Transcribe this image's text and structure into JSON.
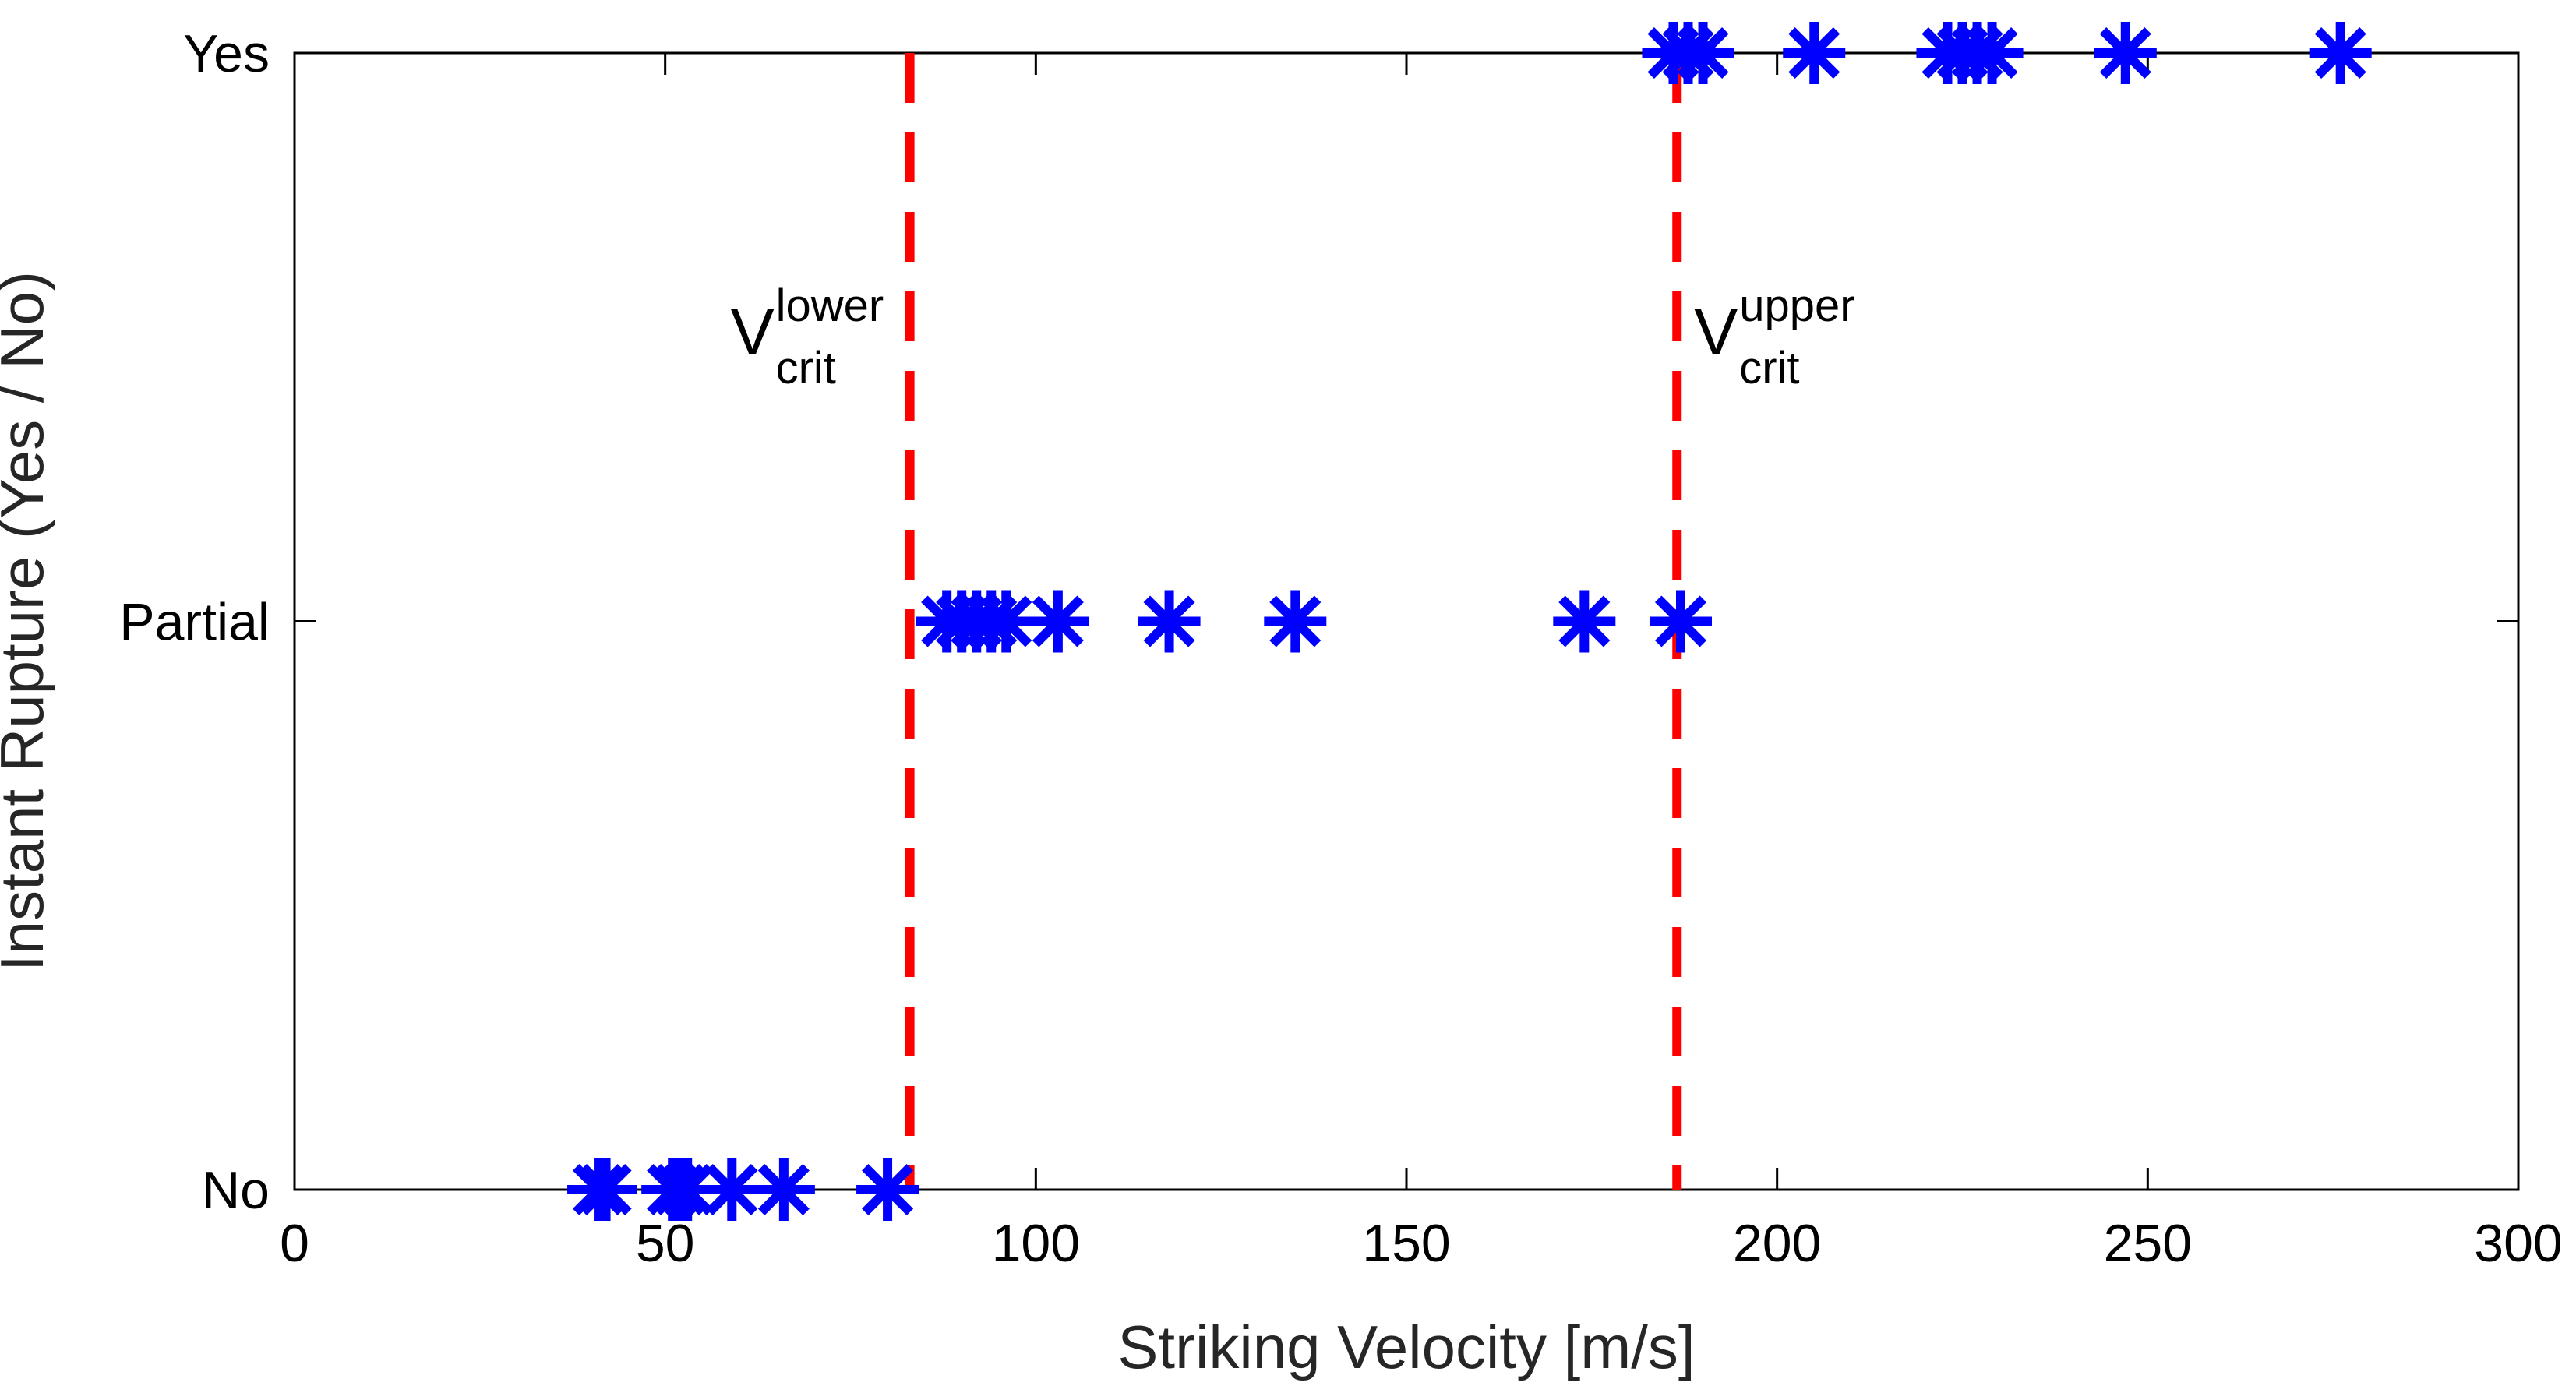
{
  "chart_data": {
    "type": "scatter",
    "title": "",
    "xlabel": "Striking Velocity [m/s]",
    "ylabel": "Instant Rupture (Yes / No)",
    "xlim": [
      0,
      300
    ],
    "ylim": [
      0,
      2
    ],
    "xticks": [
      {
        "value": 0,
        "label": "0"
      },
      {
        "value": 50,
        "label": "50"
      },
      {
        "value": 100,
        "label": "100"
      },
      {
        "value": 150,
        "label": "150"
      },
      {
        "value": 200,
        "label": "200"
      },
      {
        "value": 250,
        "label": "250"
      },
      {
        "value": 300,
        "label": "300"
      }
    ],
    "yticks": [
      {
        "value": 0,
        "label": "No"
      },
      {
        "value": 1,
        "label": "Partial"
      },
      {
        "value": 2,
        "label": "Yes"
      }
    ],
    "grid": false,
    "marker": "asterisk",
    "marker_color": "#0000ff",
    "series": [
      {
        "name": "No",
        "y": 0,
        "x": [
          41,
          42,
          51,
          52,
          53,
          59,
          66,
          80
        ]
      },
      {
        "name": "Partial",
        "y": 1,
        "x": [
          88,
          90,
          92,
          94,
          96,
          103,
          118,
          135,
          174,
          187
        ]
      },
      {
        "name": "Yes",
        "y": 2,
        "x": [
          186,
          188,
          190,
          205,
          223,
          225,
          227,
          229,
          247,
          276
        ]
      }
    ],
    "vlines": [
      {
        "x": 83,
        "label_main": "V",
        "label_sup": "lower",
        "label_sub": "crit",
        "color": "#ff0000",
        "style": "dashed"
      },
      {
        "x": 186.5,
        "label_main": "V",
        "label_sup": "upper",
        "label_sub": "crit",
        "color": "#ff0000",
        "style": "dashed"
      }
    ]
  }
}
